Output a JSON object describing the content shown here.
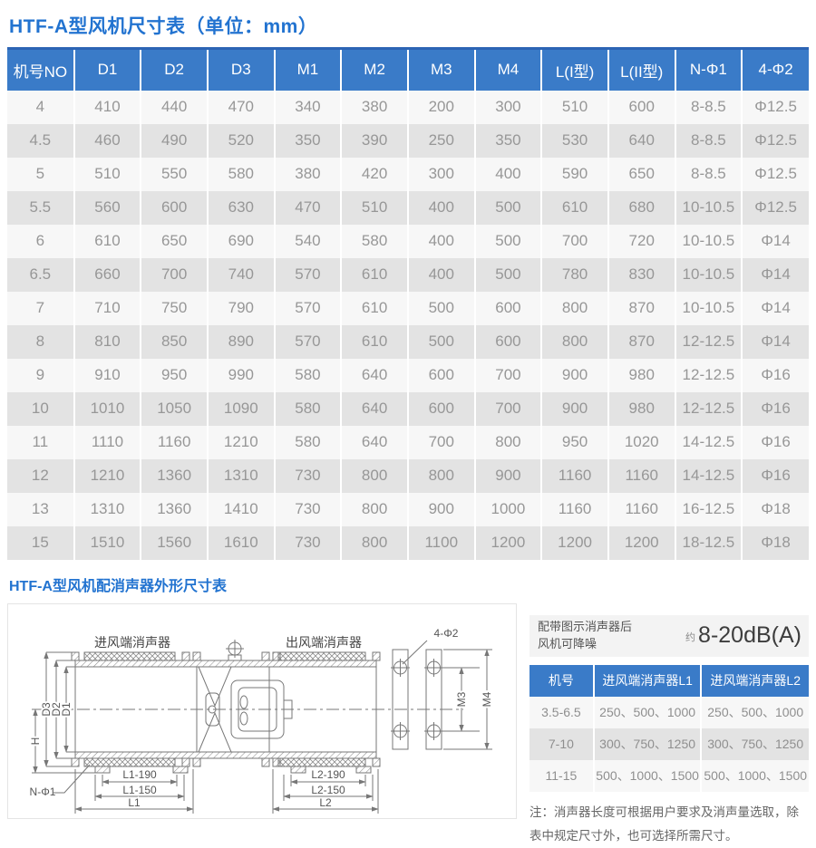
{
  "page": {
    "title": "HTF-A型风机尺寸表（单位：mm）",
    "section2_title": "HTF-A型风机配消声器外形尺寸表"
  },
  "colors": {
    "header_blue": "#3a7bc8",
    "title_blue": "#2273d0",
    "row_light": "#f7f7f7",
    "row_dark": "#e3e3e3",
    "cell_text": "#979797"
  },
  "main_table": {
    "columns": [
      "机号NO",
      "D1",
      "D2",
      "D3",
      "M1",
      "M2",
      "M3",
      "M4",
      "L(I型)",
      "L(II型)",
      "N-Φ1",
      "4-Φ2"
    ],
    "rows": [
      [
        "4",
        "410",
        "440",
        "470",
        "340",
        "380",
        "200",
        "300",
        "510",
        "600",
        "8-8.5",
        "Φ12.5"
      ],
      [
        "4.5",
        "460",
        "490",
        "520",
        "350",
        "390",
        "250",
        "350",
        "530",
        "640",
        "8-8.5",
        "Φ12.5"
      ],
      [
        "5",
        "510",
        "550",
        "580",
        "380",
        "420",
        "300",
        "400",
        "590",
        "650",
        "8-8.5",
        "Φ12.5"
      ],
      [
        "5.5",
        "560",
        "600",
        "630",
        "470",
        "510",
        "400",
        "500",
        "610",
        "680",
        "10-10.5",
        "Φ12.5"
      ],
      [
        "6",
        "610",
        "650",
        "690",
        "540",
        "580",
        "400",
        "500",
        "700",
        "720",
        "10-10.5",
        "Φ14"
      ],
      [
        "6.5",
        "660",
        "700",
        "740",
        "570",
        "610",
        "400",
        "500",
        "780",
        "830",
        "10-10.5",
        "Φ14"
      ],
      [
        "7",
        "710",
        "750",
        "790",
        "570",
        "610",
        "500",
        "600",
        "800",
        "870",
        "10-10.5",
        "Φ14"
      ],
      [
        "8",
        "810",
        "850",
        "890",
        "570",
        "610",
        "500",
        "600",
        "800",
        "870",
        "12-12.5",
        "Φ14"
      ],
      [
        "9",
        "910",
        "950",
        "990",
        "580",
        "640",
        "600",
        "700",
        "900",
        "980",
        "12-12.5",
        "Φ16"
      ],
      [
        "10",
        "1010",
        "1050",
        "1090",
        "580",
        "640",
        "600",
        "700",
        "900",
        "980",
        "12-12.5",
        "Φ16"
      ],
      [
        "11",
        "1110",
        "1160",
        "1210",
        "580",
        "640",
        "700",
        "800",
        "950",
        "1020",
        "14-12.5",
        "Φ16"
      ],
      [
        "12",
        "1210",
        "1360",
        "1310",
        "730",
        "800",
        "800",
        "900",
        "1160",
        "1160",
        "14-12.5",
        "Φ16"
      ],
      [
        "13",
        "1310",
        "1360",
        "1410",
        "730",
        "800",
        "900",
        "1000",
        "1160",
        "1160",
        "16-12.5",
        "Φ18"
      ],
      [
        "15",
        "1510",
        "1560",
        "1610",
        "730",
        "800",
        "1100",
        "1200",
        "1200",
        "1200",
        "18-12.5",
        "Φ18"
      ]
    ]
  },
  "diagram": {
    "labels": {
      "inlet": "进风端消声器",
      "outlet": "出风端消声器",
      "four_phi2": "4-Φ2",
      "d1": "D1",
      "d2": "D2",
      "d3": "D3",
      "h": "H",
      "m3": "M3",
      "m4": "M4",
      "n_phi1": "N-Φ1",
      "l1_190": "L1-190",
      "l1_150": "L1-150",
      "l1": "L1",
      "l2_190": "L2-190",
      "l2_150": "L2-150",
      "l2": "L2"
    }
  },
  "noise": {
    "line1": "配带图示消声器后",
    "line2": "风机可降噪",
    "approx": "约",
    "value": "8-20dB(A)"
  },
  "silencer_table": {
    "columns": [
      "机号",
      "进风端消声器L1",
      "进风端消声器L2"
    ],
    "rows": [
      [
        "3.5-6.5",
        "250、500、1000",
        "250、500、1000"
      ],
      [
        "7-10",
        "300、750、1250",
        "300、750、1250"
      ],
      [
        "11-15",
        "500、1000、1500",
        "500、1000、1500"
      ]
    ]
  },
  "note": {
    "line1": "注：消声器长度可根据用户要求及消声量选取，除",
    "line2": "表中规定尺寸外，也可选择所需尺寸。"
  }
}
